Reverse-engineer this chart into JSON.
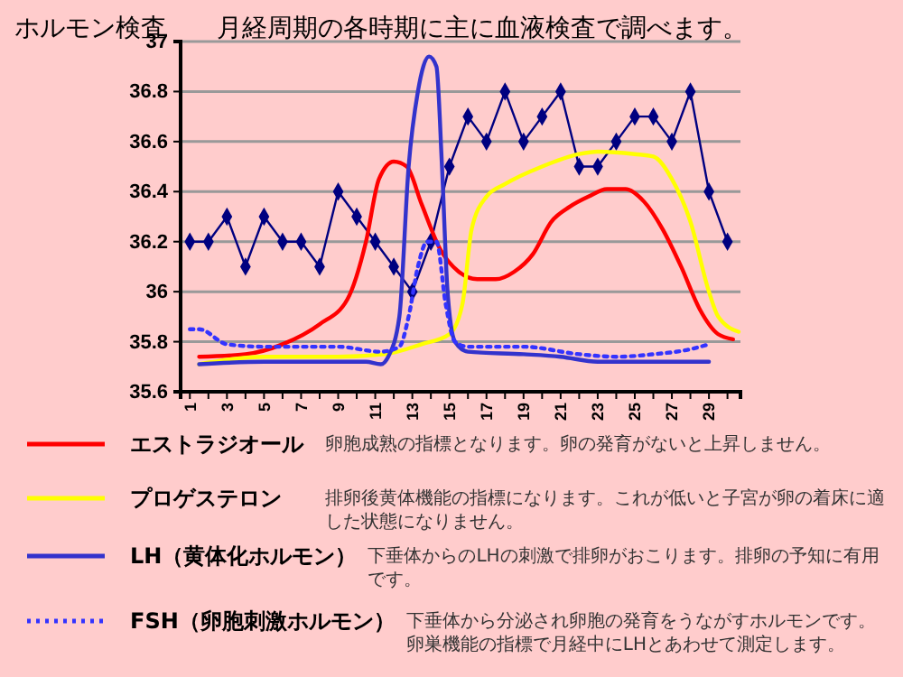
{
  "chart_data": {
    "type": "line",
    "title": "ホルモン検査",
    "subtitle": "月経周期の各時期に主に血液検査で調べます。",
    "xlim": [
      0.5,
      30.7
    ],
    "xticks": [
      1,
      {
        "value": 2,
        "label": null
      },
      3,
      {
        "value": 4,
        "label": null
      },
      5,
      {
        "value": 6,
        "label": null
      },
      7,
      {
        "value": 8,
        "label": null
      },
      9,
      {
        "value": 10,
        "label": null
      },
      11,
      {
        "value": 12,
        "label": null
      },
      13,
      {
        "value": 14,
        "label": null
      },
      15,
      {
        "value": 16,
        "label": null
      },
      17,
      {
        "value": 18,
        "label": null
      },
      19,
      {
        "value": 20,
        "label": null
      },
      21,
      {
        "value": 22,
        "label": null
      },
      23,
      {
        "value": 24,
        "label": null
      },
      25,
      {
        "value": 26,
        "label": null
      },
      27,
      {
        "value": 28,
        "label": null
      },
      29,
      {
        "value": 30,
        "label": null
      }
    ],
    "ylim": [
      35.6,
      37
    ],
    "yticks": [
      35.6,
      35.8,
      36,
      36.2,
      36.4,
      36.6,
      36.8,
      37
    ],
    "grid": "y",
    "legend": "bottom",
    "series": [
      {
        "color": "#000080",
        "marker": "diamond",
        "line_style": "solid",
        "x": [
          1,
          2,
          3,
          4,
          5,
          6,
          7,
          8,
          9,
          10,
          11,
          12,
          13,
          14,
          15,
          16,
          17,
          18,
          19,
          20,
          21,
          22,
          23,
          24,
          25,
          26,
          27,
          28,
          29,
          30
        ],
        "values": [
          36.2,
          36.2,
          36.3,
          36.1,
          36.3,
          36.2,
          36.2,
          36.1,
          36.4,
          36.3,
          36.2,
          36.1,
          36.0,
          36.2,
          36.5,
          36.7,
          36.6,
          36.8,
          36.6,
          36.7,
          36.8,
          36.5,
          36.5,
          36.6,
          36.7,
          36.7,
          36.6,
          36.8,
          36.4,
          36.2
        ]
      },
      {
        "name": "エストラジオール",
        "color": "#ff0000",
        "marker": "none",
        "line_style": "solid",
        "x": [
          1.5,
          4,
          6,
          8,
          9.5,
          10.5,
          11.2,
          12,
          12.7,
          13.5,
          14.5,
          15.5,
          16.5,
          17.5,
          18.5,
          19.5,
          20.5,
          21.5,
          22.5,
          23.5,
          24.5,
          25.5,
          26.5,
          27.5,
          28.5,
          29.5,
          30.3
        ],
        "values": [
          35.74,
          35.75,
          35.79,
          35.87,
          35.97,
          36.2,
          36.45,
          36.52,
          36.5,
          36.35,
          36.17,
          36.08,
          36.05,
          36.05,
          36.08,
          36.15,
          36.28,
          36.34,
          36.38,
          36.41,
          36.41,
          36.36,
          36.25,
          36.1,
          35.93,
          35.83,
          35.81
        ]
      },
      {
        "name": "プロゲステロン",
        "color": "#ffff00",
        "marker": "none",
        "line_style": "solid",
        "x": [
          1.5,
          5,
          9,
          11.5,
          13.5,
          15,
          15.7,
          16.2,
          17,
          18,
          20,
          22,
          23,
          25,
          26,
          27,
          28,
          29,
          29.5,
          30.6
        ],
        "values": [
          35.71,
          35.74,
          35.74,
          35.75,
          35.79,
          35.83,
          35.95,
          36.25,
          36.38,
          36.43,
          36.5,
          36.55,
          36.56,
          36.55,
          36.54,
          36.45,
          36.28,
          36.0,
          35.9,
          35.84
        ]
      },
      {
        "name": "LH（黄体化ホルモン）",
        "color": "#3333cc",
        "marker": "none",
        "line_style": "solid",
        "x": [
          1.5,
          5,
          9,
          10.5,
          11.3,
          11.7,
          12.3,
          12.8,
          13.3,
          13.9,
          14.3,
          14.6,
          14.9,
          15.3,
          16,
          19,
          21,
          23,
          26,
          29
        ],
        "values": [
          35.71,
          35.72,
          35.72,
          35.72,
          35.71,
          35.74,
          35.9,
          36.5,
          36.8,
          36.94,
          36.9,
          36.5,
          36.0,
          35.8,
          35.76,
          35.75,
          35.74,
          35.72,
          35.72,
          35.72
        ]
      },
      {
        "name": "FSH（卵胞刺激ホルモン）",
        "color": "#3333ff",
        "marker": "none",
        "line_style": "dotted",
        "x": [
          1,
          1.5,
          3,
          5,
          9,
          11.3,
          12.3,
          12.8,
          13.3,
          13.8,
          14.3,
          14.8,
          15.3,
          16,
          19,
          22,
          24,
          26,
          28,
          29
        ],
        "values": [
          35.85,
          35.85,
          35.79,
          35.78,
          35.78,
          35.76,
          35.78,
          35.9,
          36.1,
          36.2,
          36.2,
          35.95,
          35.8,
          35.78,
          35.78,
          35.75,
          35.74,
          35.75,
          35.77,
          35.79
        ]
      }
    ],
    "annotations": [
      "卵胞成熟の指標となります。卵の発育がないと上昇しません。",
      "排卵後黄体機能の指標になります。これが低いと子宮が卵の着床に適した状態になりません。",
      "下垂体からのLHの刺激で排卵がおこります。排卵の予知に有用です。",
      "下垂体から分泌され卵胞の発育をうながすホルモンです。卵巣機能の指標で月経中にLHとあわせて測定します。"
    ]
  }
}
